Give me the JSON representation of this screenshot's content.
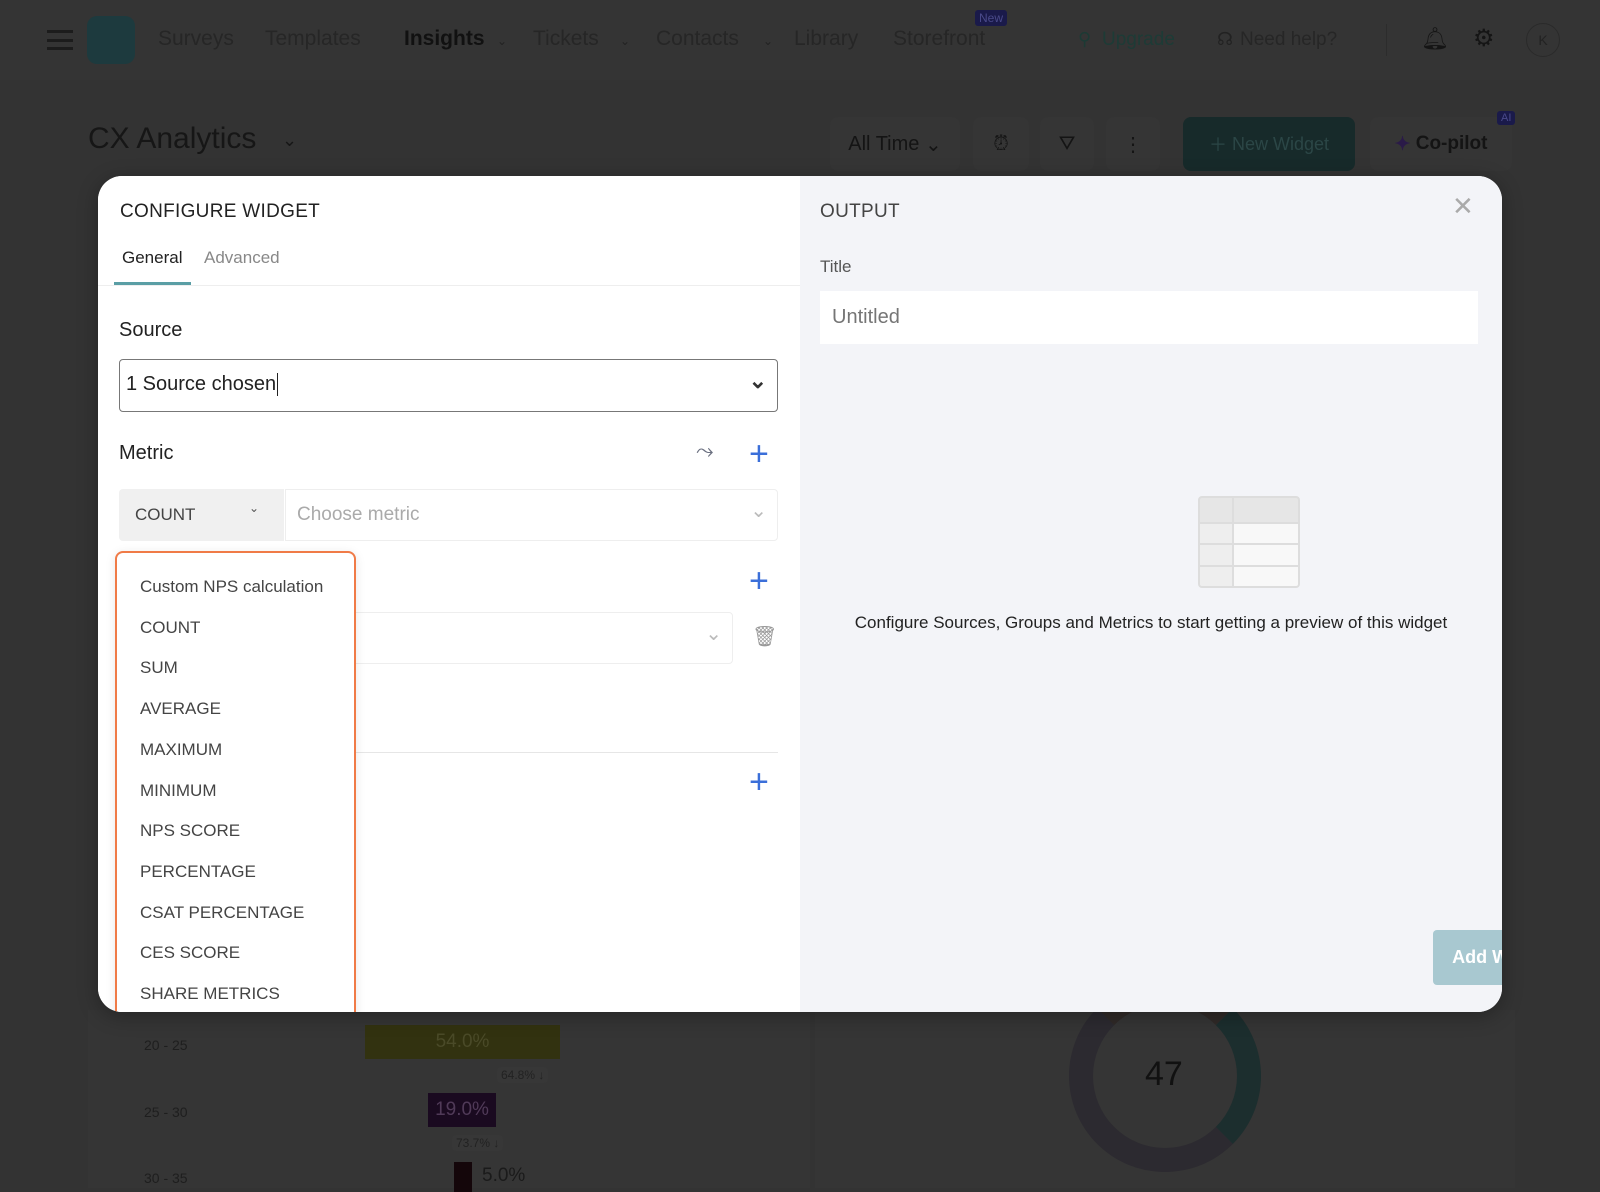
{
  "nav": {
    "items": [
      {
        "label": "Surveys"
      },
      {
        "label": "Templates"
      },
      {
        "label": "Insights",
        "active": true,
        "dropdown": true
      },
      {
        "label": "Tickets",
        "dropdown": true
      },
      {
        "label": "Contacts",
        "dropdown": true
      },
      {
        "label": "Library"
      },
      {
        "label": "Storefront",
        "badge": "New"
      }
    ],
    "upgrade": "Upgrade",
    "help": "Need help?",
    "avatar": "K"
  },
  "page": {
    "title": "CX Analytics",
    "time_filter": "All Time",
    "new_widget": "New Widget",
    "copilot": "Co-pilot",
    "copilot_badge": "AI"
  },
  "modal": {
    "title": "CONFIGURE WIDGET",
    "tabs": [
      {
        "label": "General",
        "active": true
      },
      {
        "label": "Advanced"
      }
    ],
    "source_label": "Source",
    "source_value": "1 Source chosen",
    "metric_label": "Metric",
    "aggregation": "COUNT",
    "metric_placeholder": "Choose metric",
    "aggregation_options": [
      "Custom NPS calculation",
      "COUNT",
      "SUM",
      "AVERAGE",
      "MAXIMUM",
      "MINIMUM",
      "NPS SCORE",
      "PERCENTAGE",
      "CSAT PERCENTAGE",
      "CES SCORE",
      "SHARE METRICS"
    ],
    "output_title": "OUTPUT",
    "title_label": "Title",
    "title_placeholder": "Untitled",
    "empty_message": "Configure Sources, Groups and Metrics to start getting a preview of this widget",
    "add_button": "Add Widget"
  },
  "background": {
    "funnel": [
      {
        "range": "20 - 25",
        "value": "54.0%",
        "drop": "64.8%"
      },
      {
        "range": "25 - 30",
        "value": "19.0%",
        "drop": "73.7%"
      },
      {
        "range": "30 - 35",
        "value": "5.0%"
      }
    ],
    "donut_value": "47"
  },
  "colors": {
    "accent": "#5a9ea5",
    "plus": "#3b6fd9",
    "dropdown_border": "#f07b47",
    "add_button": "#a8c8d0"
  }
}
